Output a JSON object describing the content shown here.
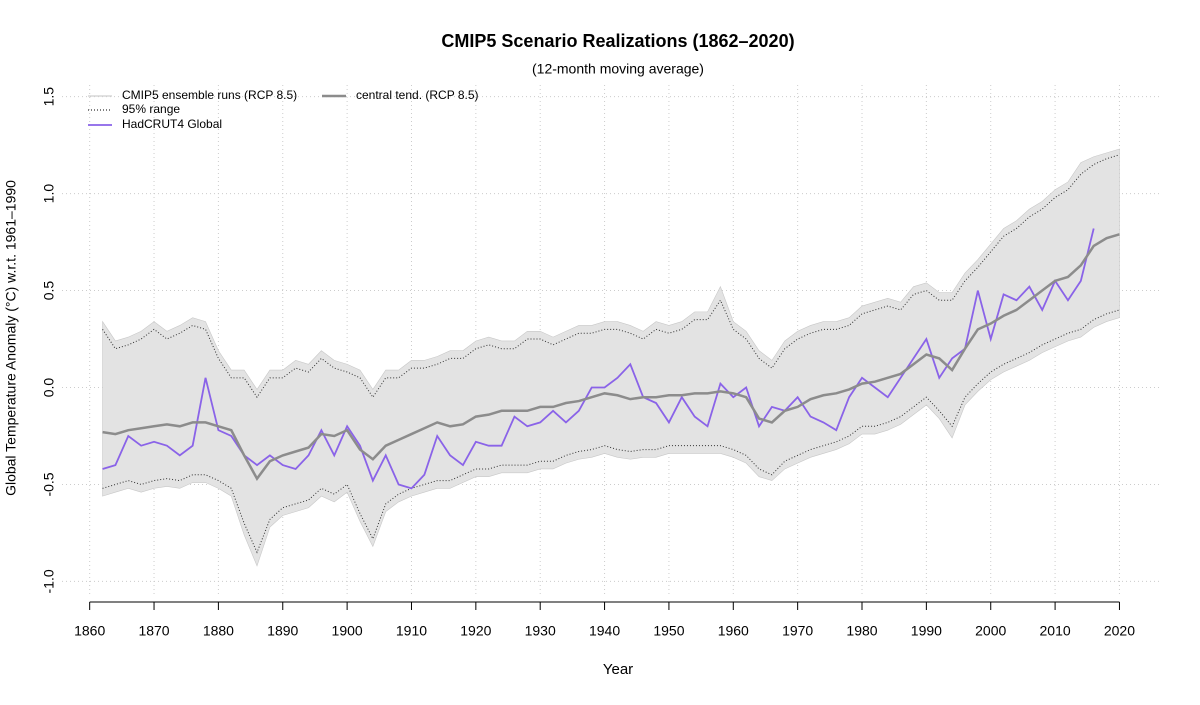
{
  "chart_data": {
    "type": "line",
    "title": "CMIP5 Scenario Realizations (1862–2020)",
    "subtitle": "(12-month moving average)",
    "x_label": "Year",
    "y_label": "Global Temperature Anomaly (°C) w.r.t. 1961–1990",
    "xlim": [
      1855.7,
      2026.3
    ],
    "ylim": [
      -1.07,
      1.56
    ],
    "xticks": [
      1860,
      1870,
      1880,
      1890,
      1900,
      1910,
      1920,
      1930,
      1940,
      1950,
      1960,
      1970,
      1980,
      1990,
      2000,
      2010,
      2020
    ],
    "yticks": [
      {
        "value": -1,
        "label": "-1.0"
      },
      -0.5,
      {
        "value": 0,
        "label": "0.0"
      },
      0.5,
      {
        "value": 1,
        "label": "1.0"
      },
      1.5
    ],
    "grid": true,
    "legend": "top-left",
    "x": [
      1862,
      1864,
      1866,
      1868,
      1870,
      1872,
      1874,
      1876,
      1878,
      1880,
      1882,
      1884,
      1886,
      1888,
      1890,
      1892,
      1894,
      1896,
      1898,
      1900,
      1902,
      1904,
      1906,
      1908,
      1910,
      1912,
      1914,
      1916,
      1918,
      1920,
      1922,
      1924,
      1926,
      1928,
      1930,
      1932,
      1934,
      1936,
      1938,
      1940,
      1942,
      1944,
      1946,
      1948,
      1950,
      1952,
      1954,
      1956,
      1958,
      1960,
      1962,
      1964,
      1966,
      1968,
      1970,
      1972,
      1974,
      1976,
      1978,
      1980,
      1982,
      1984,
      1986,
      1988,
      1990,
      1992,
      1994,
      1996,
      1998,
      2000,
      2002,
      2004,
      2006,
      2008,
      2010,
      2012,
      2014,
      2016,
      2018,
      2020
    ],
    "series": [
      {
        "name": "CMIP5 ensemble runs (RCP 8.5)",
        "color": "#e3e3e3",
        "style": "band",
        "upper": [
          0.34,
          0.24,
          0.26,
          0.29,
          0.34,
          0.29,
          0.32,
          0.36,
          0.34,
          0.19,
          0.09,
          0.09,
          -0.01,
          0.09,
          0.09,
          0.14,
          0.12,
          0.19,
          0.14,
          0.12,
          0.09,
          -0.01,
          0.09,
          0.09,
          0.14,
          0.14,
          0.16,
          0.19,
          0.19,
          0.24,
          0.26,
          0.24,
          0.24,
          0.29,
          0.29,
          0.26,
          0.29,
          0.32,
          0.32,
          0.34,
          0.34,
          0.32,
          0.29,
          0.34,
          0.32,
          0.34,
          0.39,
          0.39,
          0.52,
          0.34,
          0.29,
          0.19,
          0.14,
          0.24,
          0.29,
          0.32,
          0.34,
          0.34,
          0.36,
          0.42,
          0.44,
          0.46,
          0.44,
          0.52,
          0.54,
          0.49,
          0.49,
          0.59,
          0.66,
          0.74,
          0.82,
          0.86,
          0.92,
          0.96,
          1.02,
          1.06,
          1.16,
          1.19,
          1.21,
          1.23
        ],
        "lower": [
          -0.56,
          -0.54,
          -0.52,
          -0.54,
          -0.52,
          -0.51,
          -0.52,
          -0.49,
          -0.49,
          -0.52,
          -0.56,
          -0.76,
          -0.92,
          -0.72,
          -0.66,
          -0.64,
          -0.62,
          -0.56,
          -0.59,
          -0.54,
          -0.69,
          -0.82,
          -0.64,
          -0.59,
          -0.56,
          -0.54,
          -0.52,
          -0.52,
          -0.49,
          -0.46,
          -0.46,
          -0.44,
          -0.44,
          -0.44,
          -0.42,
          -0.42,
          -0.39,
          -0.37,
          -0.36,
          -0.34,
          -0.36,
          -0.37,
          -0.36,
          -0.36,
          -0.34,
          -0.34,
          -0.34,
          -0.34,
          -0.34,
          -0.36,
          -0.39,
          -0.46,
          -0.48,
          -0.42,
          -0.39,
          -0.36,
          -0.34,
          -0.32,
          -0.29,
          -0.24,
          -0.24,
          -0.22,
          -0.19,
          -0.14,
          -0.09,
          -0.16,
          -0.26,
          -0.09,
          -0.02,
          0.04,
          0.08,
          0.11,
          0.14,
          0.18,
          0.21,
          0.24,
          0.26,
          0.31,
          0.34,
          0.36
        ]
      },
      {
        "name": "95% range",
        "color": "#333333",
        "style": "dotted",
        "upper": [
          0.3,
          0.2,
          0.22,
          0.25,
          0.3,
          0.25,
          0.28,
          0.32,
          0.3,
          0.15,
          0.05,
          0.05,
          -0.05,
          0.05,
          0.05,
          0.1,
          0.08,
          0.15,
          0.1,
          0.08,
          0.05,
          -0.05,
          0.05,
          0.05,
          0.1,
          0.1,
          0.12,
          0.15,
          0.15,
          0.2,
          0.22,
          0.2,
          0.2,
          0.25,
          0.25,
          0.22,
          0.25,
          0.28,
          0.28,
          0.3,
          0.3,
          0.28,
          0.25,
          0.3,
          0.28,
          0.3,
          0.35,
          0.35,
          0.45,
          0.3,
          0.25,
          0.15,
          0.1,
          0.2,
          0.25,
          0.28,
          0.3,
          0.3,
          0.32,
          0.38,
          0.4,
          0.42,
          0.4,
          0.48,
          0.5,
          0.45,
          0.45,
          0.55,
          0.62,
          0.7,
          0.78,
          0.82,
          0.88,
          0.92,
          0.98,
          1.02,
          1.1,
          1.15,
          1.18,
          1.2
        ],
        "lower": [
          -0.52,
          -0.5,
          -0.48,
          -0.5,
          -0.48,
          -0.47,
          -0.48,
          -0.45,
          -0.45,
          -0.48,
          -0.52,
          -0.7,
          -0.85,
          -0.68,
          -0.62,
          -0.6,
          -0.58,
          -0.52,
          -0.55,
          -0.5,
          -0.65,
          -0.78,
          -0.6,
          -0.55,
          -0.52,
          -0.5,
          -0.48,
          -0.48,
          -0.45,
          -0.42,
          -0.42,
          -0.4,
          -0.4,
          -0.4,
          -0.38,
          -0.38,
          -0.35,
          -0.33,
          -0.32,
          -0.3,
          -0.32,
          -0.33,
          -0.32,
          -0.32,
          -0.3,
          -0.3,
          -0.3,
          -0.3,
          -0.3,
          -0.32,
          -0.35,
          -0.42,
          -0.45,
          -0.38,
          -0.35,
          -0.32,
          -0.3,
          -0.28,
          -0.25,
          -0.2,
          -0.2,
          -0.18,
          -0.15,
          -0.1,
          -0.05,
          -0.12,
          -0.2,
          -0.05,
          0.02,
          0.08,
          0.12,
          0.15,
          0.18,
          0.22,
          0.25,
          0.28,
          0.3,
          0.35,
          0.38,
          0.4
        ]
      },
      {
        "name": "HadCRUT4 Global",
        "color": "#8a63e8",
        "style": "solid",
        "values": [
          -0.42,
          -0.4,
          -0.25,
          -0.3,
          -0.28,
          -0.3,
          -0.35,
          -0.3,
          0.05,
          -0.22,
          -0.25,
          -0.35,
          -0.4,
          -0.35,
          -0.4,
          -0.42,
          -0.35,
          -0.22,
          -0.35,
          -0.2,
          -0.3,
          -0.48,
          -0.35,
          -0.5,
          -0.52,
          -0.45,
          -0.25,
          -0.35,
          -0.4,
          -0.28,
          -0.3,
          -0.3,
          -0.15,
          -0.2,
          -0.18,
          -0.12,
          -0.18,
          -0.12,
          0.0,
          0.0,
          0.05,
          0.12,
          -0.05,
          -0.08,
          -0.18,
          -0.05,
          -0.15,
          -0.2,
          0.02,
          -0.05,
          0.0,
          -0.2,
          -0.1,
          -0.12,
          -0.05,
          -0.15,
          -0.18,
          -0.22,
          -0.05,
          0.05,
          0.0,
          -0.05,
          0.05,
          0.15,
          0.25,
          0.05,
          0.15,
          0.2,
          0.5,
          0.25,
          0.48,
          0.45,
          0.52,
          0.4,
          0.55,
          0.45,
          0.55,
          0.82,
          null,
          null
        ]
      },
      {
        "name": "central tend. (RCP 8.5)",
        "color": "#8c8c8c",
        "style": "thick",
        "values": [
          -0.23,
          -0.24,
          -0.22,
          -0.21,
          -0.2,
          -0.19,
          -0.2,
          -0.18,
          -0.18,
          -0.2,
          -0.22,
          -0.35,
          -0.47,
          -0.38,
          -0.35,
          -0.33,
          -0.31,
          -0.24,
          -0.25,
          -0.22,
          -0.32,
          -0.37,
          -0.3,
          -0.27,
          -0.24,
          -0.21,
          -0.18,
          -0.2,
          -0.19,
          -0.15,
          -0.14,
          -0.12,
          -0.12,
          -0.12,
          -0.1,
          -0.1,
          -0.08,
          -0.07,
          -0.05,
          -0.03,
          -0.04,
          -0.06,
          -0.05,
          -0.05,
          -0.04,
          -0.04,
          -0.03,
          -0.03,
          -0.02,
          -0.03,
          -0.05,
          -0.16,
          -0.18,
          -0.12,
          -0.1,
          -0.06,
          -0.04,
          -0.03,
          -0.01,
          0.02,
          0.03,
          0.05,
          0.07,
          0.12,
          0.17,
          0.15,
          0.09,
          0.2,
          0.3,
          0.33,
          0.37,
          0.4,
          0.45,
          0.5,
          0.55,
          0.57,
          0.63,
          0.73,
          0.77,
          0.79
        ]
      }
    ]
  }
}
